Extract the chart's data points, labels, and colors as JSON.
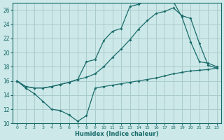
{
  "xlabel": "Humidex (Indice chaleur)",
  "bg_color": "#cce8e8",
  "grid_color": "#aacccc",
  "line_color": "#1a6b6b",
  "xlim": [
    -0.5,
    23.5
  ],
  "ylim": [
    10,
    27
  ],
  "xticks": [
    0,
    1,
    2,
    3,
    4,
    5,
    6,
    7,
    8,
    9,
    10,
    11,
    12,
    13,
    14,
    15,
    16,
    17,
    18,
    19,
    20,
    21,
    22,
    23
  ],
  "yticks": [
    10,
    12,
    14,
    16,
    18,
    20,
    22,
    24,
    26
  ],
  "line1_x": [
    0,
    1,
    2,
    3,
    4,
    5,
    6,
    7,
    8,
    9,
    10,
    11,
    12,
    13,
    14,
    15,
    16,
    17,
    18,
    19,
    20,
    21,
    22,
    23
  ],
  "line1_y": [
    16.0,
    15.0,
    14.2,
    13.1,
    12.0,
    11.8,
    11.2,
    10.3,
    11.1,
    15.0,
    15.2,
    15.4,
    15.6,
    15.8,
    16.0,
    16.2,
    16.4,
    16.7,
    17.0,
    17.2,
    17.4,
    17.5,
    17.6,
    17.8
  ],
  "line2_x": [
    0,
    1,
    2,
    3,
    4,
    5,
    6,
    7,
    8,
    9,
    10,
    11,
    12,
    13,
    14,
    15,
    16,
    17,
    18,
    19,
    20,
    21,
    22,
    23
  ],
  "line2_y": [
    16.0,
    15.2,
    15.0,
    15.0,
    15.2,
    15.5,
    15.8,
    16.2,
    18.7,
    19.0,
    21.7,
    23.0,
    23.4,
    26.5,
    26.8,
    27.3,
    27.5,
    27.3,
    27.2,
    25.0,
    21.5,
    18.7,
    18.5,
    18.0
  ],
  "line3_x": [
    0,
    1,
    2,
    3,
    4,
    5,
    6,
    7,
    8,
    9,
    10,
    11,
    12,
    13,
    14,
    15,
    16,
    17,
    18,
    19,
    20,
    21,
    22,
    23
  ],
  "line3_y": [
    16.0,
    15.2,
    15.0,
    15.0,
    15.2,
    15.5,
    15.8,
    16.2,
    16.5,
    17.0,
    18.0,
    19.3,
    20.5,
    21.8,
    23.3,
    24.5,
    25.5,
    25.8,
    26.3,
    25.2,
    24.8,
    21.3,
    18.2,
    17.8
  ]
}
